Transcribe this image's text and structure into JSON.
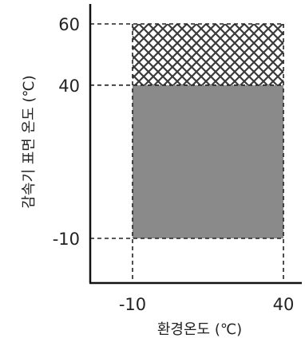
{
  "chart_data": {
    "type": "area",
    "title": "",
    "xlabel": "환경온도 (℃)",
    "ylabel": "감속기 표면 온도 (℃)",
    "x_ticks": [
      "-10",
      "40"
    ],
    "y_ticks": [
      "60",
      "40",
      "-10"
    ],
    "x_range": [
      -10,
      40
    ],
    "y_range": [
      -10,
      60
    ],
    "regions": [
      {
        "name": "",
        "x": [
          -10,
          40
        ],
        "y": [
          -10,
          40
        ],
        "fill": "solid-gray",
        "color": "#8a8a8a"
      },
      {
        "name": "",
        "x": [
          -10,
          40
        ],
        "y": [
          40,
          60
        ],
        "fill": "crosshatch",
        "color": "#3a3a3a"
      }
    ],
    "reference_lines": [
      {
        "axis": "y",
        "value": 60
      },
      {
        "axis": "y",
        "value": 40
      },
      {
        "axis": "y",
        "value": -10
      },
      {
        "axis": "x",
        "value": -10
      },
      {
        "axis": "x",
        "value": 40
      }
    ],
    "grid": false
  }
}
